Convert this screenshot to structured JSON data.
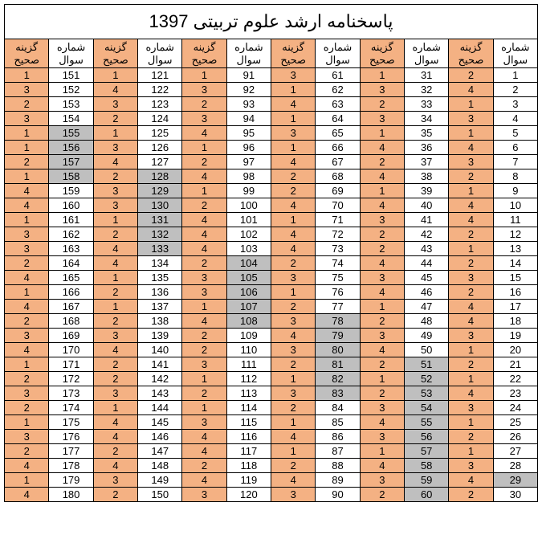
{
  "title": "پاسخنامه ارشد علوم تربیتی 1397",
  "header_q": "شماره سوال",
  "header_a": "گزینه صحیح",
  "colors": {
    "answer_bg": "#f4b183",
    "question_bg": "#ffffff",
    "watermark_bg": "#bfbfbf",
    "border": "#000000"
  },
  "fontsize_title": 22,
  "fontsize_cell": 13,
  "num_column_pairs": 6,
  "rows_per_column": 30,
  "answers": {
    "1": 2,
    "2": 4,
    "3": 1,
    "4": 3,
    "5": 1,
    "6": 4,
    "7": 3,
    "8": 2,
    "9": 1,
    "10": 4,
    "11": 4,
    "12": 2,
    "13": 1,
    "14": 2,
    "15": 3,
    "16": 2,
    "17": 4,
    "18": 4,
    "19": 3,
    "20": 1,
    "21": 2,
    "22": 1,
    "23": 4,
    "24": 3,
    "25": 1,
    "26": 2,
    "27": 1,
    "28": 3,
    "29": 4,
    "30": 2,
    "31": 1,
    "32": 3,
    "33": 2,
    "34": 3,
    "35": 1,
    "36": 4,
    "37": 2,
    "38": 4,
    "39": 1,
    "40": 4,
    "41": 3,
    "42": 2,
    "43": 2,
    "44": 4,
    "45": 3,
    "46": 4,
    "47": 1,
    "48": 2,
    "49": 3,
    "50": 4,
    "51": 2,
    "52": 1,
    "53": 2,
    "54": 3,
    "55": 4,
    "56": 3,
    "57": 1,
    "58": 4,
    "59": 3,
    "60": 2,
    "61": 3,
    "62": 1,
    "63": 4,
    "64": 1,
    "65": 3,
    "66": 1,
    "67": 4,
    "68": 2,
    "69": 2,
    "70": 4,
    "71": 1,
    "72": 4,
    "73": 4,
    "74": 2,
    "75": 3,
    "76": 1,
    "77": 2,
    "78": 3,
    "79": 4,
    "80": 3,
    "81": 2,
    "82": 1,
    "83": 3,
    "84": 2,
    "85": 1,
    "86": 4,
    "87": 1,
    "88": 2,
    "89": 4,
    "90": 3,
    "91": 1,
    "92": 3,
    "93": 2,
    "94": 3,
    "95": 4,
    "96": 1,
    "97": 2,
    "98": 4,
    "99": 1,
    "100": 2,
    "101": 4,
    "102": 4,
    "103": 4,
    "104": 2,
    "105": 3,
    "106": 3,
    "107": 1,
    "108": 4,
    "109": 2,
    "110": 2,
    "111": 3,
    "112": 1,
    "113": 2,
    "114": 1,
    "115": 3,
    "116": 4,
    "117": 4,
    "118": 2,
    "119": 4,
    "120": 3,
    "121": 1,
    "122": 4,
    "123": 3,
    "124": 2,
    "125": 1,
    "126": 3,
    "127": 4,
    "128": 2,
    "129": 3,
    "130": 3,
    "131": 1,
    "132": 2,
    "133": 4,
    "134": 4,
    "135": 1,
    "136": 2,
    "137": 1,
    "138": 2,
    "139": 3,
    "140": 4,
    "141": 2,
    "142": 2,
    "143": 3,
    "144": 1,
    "145": 4,
    "146": 4,
    "147": 2,
    "148": 4,
    "149": 3,
    "150": 2,
    "151": 1,
    "152": 3,
    "153": 2,
    "154": 3,
    "155": 1,
    "156": 1,
    "157": 2,
    "158": 1,
    "159": 4,
    "160": 4,
    "161": 1,
    "162": 3,
    "163": 3,
    "164": 2,
    "165": 4,
    "166": 1,
    "167": 4,
    "168": 2,
    "169": 3,
    "170": 4,
    "171": 1,
    "172": 2,
    "173": 3,
    "174": 2,
    "175": 1,
    "176": 3,
    "177": 2,
    "178": 4,
    "179": 1,
    "180": 4
  },
  "watermark_cells": {
    "q": [
      29,
      51,
      52,
      53,
      54,
      55,
      56,
      57,
      58,
      59,
      60,
      78,
      79,
      80,
      81,
      82,
      83,
      104,
      105,
      106,
      107,
      108,
      128,
      129,
      130,
      131,
      132,
      133,
      155,
      156,
      157,
      158
    ],
    "a": []
  }
}
